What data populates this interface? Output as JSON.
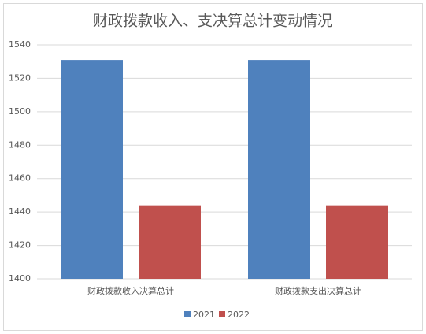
{
  "chart_data": {
    "type": "bar",
    "title": "财政拨款收入、支决算总计变动情况",
    "categories": [
      "财政拨款收入决算总计",
      "财政拨款支出决算总计"
    ],
    "series": [
      {
        "name": "2021",
        "color": "#4f81bd",
        "values": [
          1531,
          1531
        ]
      },
      {
        "name": "2022",
        "color": "#c0504d",
        "values": [
          1444,
          1444
        ]
      }
    ],
    "ylim": [
      1400,
      1540
    ],
    "yticks": [
      1400,
      1420,
      1440,
      1460,
      1480,
      1500,
      1520,
      1540
    ],
    "grid": true,
    "legend": "bottom"
  }
}
